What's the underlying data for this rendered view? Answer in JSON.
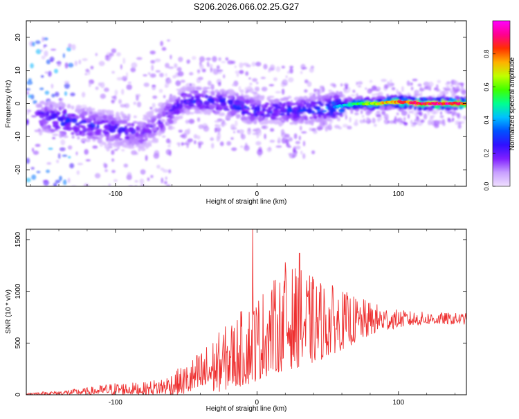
{
  "title": "S206.2026.066.02.25.G27",
  "chart_data": [
    {
      "type": "heatmap",
      "xlabel": "Height of straight line (km)",
      "ylabel": "Frequency (Hz)",
      "xlim": [
        -163,
        148
      ],
      "ylim": [
        -25,
        25
      ],
      "xticks": [
        -100,
        0,
        100
      ],
      "yticks": [
        -20,
        -10,
        0,
        10,
        20
      ],
      "colorbar": {
        "label": "Normalized spectral amplitude",
        "range": [
          0,
          1
        ],
        "ticks": [
          0.0,
          0.2,
          0.4,
          0.6,
          0.8
        ],
        "colormap": [
          "#f0e0ff",
          "#c8a0ff",
          "#8020ff",
          "#3010ff",
          "#0050ff",
          "#00c0ff",
          "#00ff90",
          "#40ff00",
          "#c0ff00",
          "#ffb000",
          "#ff3000",
          "#ff0090",
          "#ff00ff"
        ]
      },
      "ridge": [
        {
          "x": -150,
          "f": -4,
          "amp": 0.25
        },
        {
          "x": -140,
          "f": -5,
          "amp": 0.3
        },
        {
          "x": -125,
          "f": -6,
          "amp": 0.3
        },
        {
          "x": -110,
          "f": -7,
          "amp": 0.25
        },
        {
          "x": -95,
          "f": -8,
          "amp": 0.25
        },
        {
          "x": -80,
          "f": -9,
          "amp": 0.2
        },
        {
          "x": -70,
          "f": -6,
          "amp": 0.2
        },
        {
          "x": -60,
          "f": -2,
          "amp": 0.25
        },
        {
          "x": -50,
          "f": 1,
          "amp": 0.28
        },
        {
          "x": -35,
          "f": 1,
          "amp": 0.3
        },
        {
          "x": -20,
          "f": 0,
          "amp": 0.3
        },
        {
          "x": -5,
          "f": -2,
          "amp": 0.3
        },
        {
          "x": 10,
          "f": -2,
          "amp": 0.28
        },
        {
          "x": 25,
          "f": -2,
          "amp": 0.3
        },
        {
          "x": 40,
          "f": -2,
          "amp": 0.35
        },
        {
          "x": 55,
          "f": -1,
          "amp": 0.4
        },
        {
          "x": 70,
          "f": 0,
          "amp": 0.55
        },
        {
          "x": 85,
          "f": 0,
          "amp": 0.7
        },
        {
          "x": 100,
          "f": 0.5,
          "amp": 0.85
        },
        {
          "x": 115,
          "f": 0,
          "amp": 0.9
        },
        {
          "x": 130,
          "f": 0,
          "amp": 0.95
        },
        {
          "x": 145,
          "f": 0,
          "amp": 0.9
        }
      ]
    },
    {
      "type": "line",
      "xlabel": "Height of straight line (km)",
      "ylabel": "SNR (10 * v/v)",
      "xlim": [
        -163,
        148
      ],
      "ylim": [
        0,
        1600
      ],
      "xticks": [
        -100,
        0,
        100
      ],
      "yticks": [
        0,
        500,
        1000,
        1500
      ],
      "color": "#ee3030",
      "envelope": [
        {
          "x": -163,
          "lo": 0,
          "hi": 20
        },
        {
          "x": -140,
          "lo": 0,
          "hi": 40
        },
        {
          "x": -120,
          "lo": 0,
          "hi": 70
        },
        {
          "x": -100,
          "lo": 0,
          "hi": 120
        },
        {
          "x": -80,
          "lo": 0,
          "hi": 120
        },
        {
          "x": -65,
          "lo": 0,
          "hi": 180
        },
        {
          "x": -50,
          "lo": 0,
          "hi": 300
        },
        {
          "x": -35,
          "lo": 0,
          "hi": 500
        },
        {
          "x": -20,
          "lo": 50,
          "hi": 700
        },
        {
          "x": -5,
          "lo": 100,
          "hi": 900
        },
        {
          "x": 10,
          "lo": 200,
          "hi": 1100
        },
        {
          "x": 25,
          "lo": 250,
          "hi": 1250
        },
        {
          "x": 40,
          "lo": 300,
          "hi": 1150
        },
        {
          "x": 55,
          "lo": 400,
          "hi": 1050
        },
        {
          "x": 70,
          "lo": 500,
          "hi": 950
        },
        {
          "x": 85,
          "lo": 600,
          "hi": 880
        },
        {
          "x": 100,
          "lo": 650,
          "hi": 820
        },
        {
          "x": 120,
          "lo": 680,
          "hi": 800
        },
        {
          "x": 148,
          "lo": 680,
          "hi": 790
        }
      ],
      "spikes": [
        {
          "x": -3,
          "y": 1600
        },
        {
          "x": 30,
          "y": 1370
        },
        {
          "x": 20,
          "y": 1280
        }
      ]
    }
  ]
}
